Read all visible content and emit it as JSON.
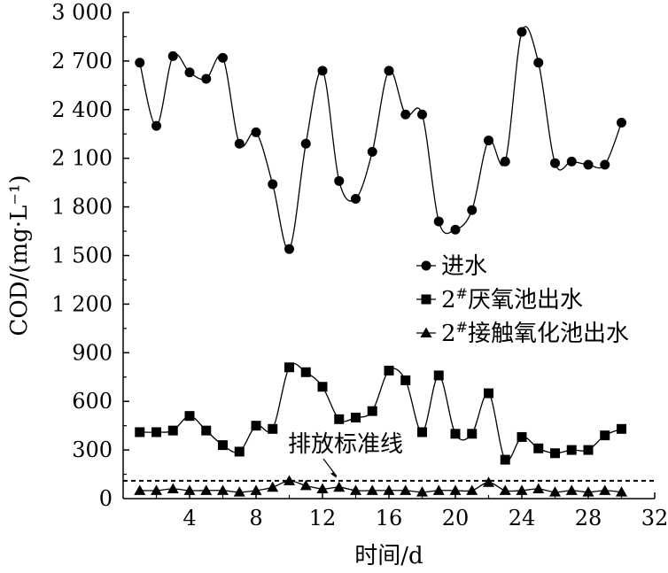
{
  "chart_data": {
    "type": "line",
    "xlabel": "时间/d",
    "ylabel": "COD/(mg·L⁻¹)",
    "xlim": [
      0,
      32
    ],
    "ylim": [
      0,
      3000
    ],
    "xticks": [
      {
        "value": 4,
        "label": "4"
      },
      {
        "value": 8,
        "label": "8"
      },
      {
        "value": 12,
        "label": "12"
      },
      {
        "value": 16,
        "label": "16"
      },
      {
        "value": 20,
        "label": "20"
      },
      {
        "value": 24,
        "label": "24"
      },
      {
        "value": 28,
        "label": "28"
      },
      {
        "value": 32,
        "label": "32"
      }
    ],
    "yticks": [
      {
        "value": 0,
        "label": "0"
      },
      {
        "value": 300,
        "label": "300"
      },
      {
        "value": 600,
        "label": "600"
      },
      {
        "value": 900,
        "label": "900"
      },
      {
        "value": 1200,
        "label": "1 200"
      },
      {
        "value": 1500,
        "label": "1 500"
      },
      {
        "value": 1800,
        "label": "1 800"
      },
      {
        "value": 2100,
        "label": "2 100"
      },
      {
        "value": 2400,
        "label": "2 400"
      },
      {
        "value": 2700,
        "label": "2 700"
      },
      {
        "value": 3000,
        "label": "3 000"
      }
    ],
    "x": [
      1,
      2,
      3,
      4,
      5,
      6,
      7,
      8,
      9,
      10,
      11,
      12,
      13,
      14,
      15,
      16,
      17,
      18,
      19,
      20,
      21,
      22,
      23,
      24,
      25,
      26,
      27,
      28,
      29,
      30
    ],
    "series": [
      {
        "name": "进水",
        "marker": "circle",
        "values": [
          2690,
          2300,
          2730,
          2630,
          2590,
          2720,
          2190,
          2260,
          1940,
          1540,
          2190,
          2640,
          1960,
          1850,
          2140,
          2640,
          2370,
          2370,
          1710,
          1660,
          1780,
          2210,
          2080,
          2880,
          2690,
          2070,
          2080,
          2060,
          2060,
          2320
        ]
      },
      {
        "name": "2#厌氧池出水",
        "label_main": "2",
        "label_sup": "#",
        "label_rest": "厌氧池出水",
        "marker": "square",
        "values": [
          410,
          410,
          420,
          510,
          420,
          330,
          290,
          450,
          430,
          810,
          780,
          690,
          490,
          500,
          540,
          790,
          730,
          410,
          760,
          400,
          400,
          650,
          240,
          380,
          310,
          280,
          300,
          300,
          390,
          430
        ]
      },
      {
        "name": "2#接触氧化池出水",
        "label_main": "2",
        "label_sup": "#",
        "label_rest": "接触氧化池出水",
        "marker": "triangle",
        "values": [
          50,
          50,
          60,
          50,
          50,
          50,
          40,
          50,
          70,
          110,
          80,
          60,
          70,
          50,
          50,
          50,
          50,
          40,
          50,
          50,
          50,
          100,
          50,
          50,
          60,
          40,
          50,
          40,
          50,
          40
        ]
      }
    ],
    "reference_line": {
      "value": 110,
      "label": "排放标准线",
      "style": "dashed"
    },
    "legend_position": "right-middle",
    "grid": false
  }
}
